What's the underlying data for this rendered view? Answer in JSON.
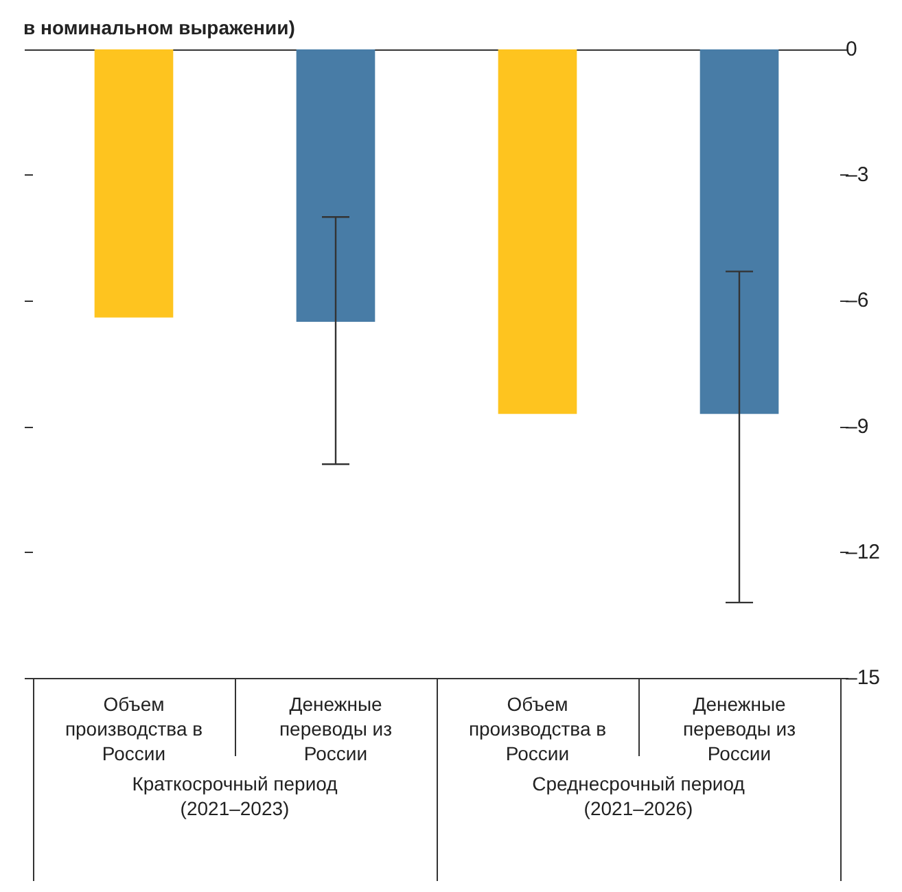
{
  "chart_data": {
    "type": "bar",
    "title": "в номинальном выражении)",
    "categories": [
      "Объем производства в России",
      "Денежные переводы из России",
      "Объем производства в России",
      "Денежные переводы из России"
    ],
    "values": [
      -6.4,
      -6.5,
      -8.7,
      -8.7
    ],
    "colors": [
      "#fec41f",
      "#487ca6",
      "#fec41f",
      "#487ca6"
    ],
    "errors": [
      null,
      [
        -9.9,
        -4.0
      ],
      null,
      [
        -13.2,
        -5.3
      ]
    ],
    "annotations": [
      "Краткосрочный период\n(2021–2023)",
      "Среднесрочный период\n(2021–2026)"
    ],
    "ylim": [
      -15,
      0
    ],
    "yticks": [
      0,
      {
        "value": -3,
        "label": "–3"
      },
      {
        "value": -6,
        "label": "–6"
      },
      {
        "value": -9,
        "label": "–9"
      },
      {
        "value": -12,
        "label": "–12"
      },
      {
        "value": -15,
        "label": "–15"
      }
    ],
    "grid": false
  }
}
